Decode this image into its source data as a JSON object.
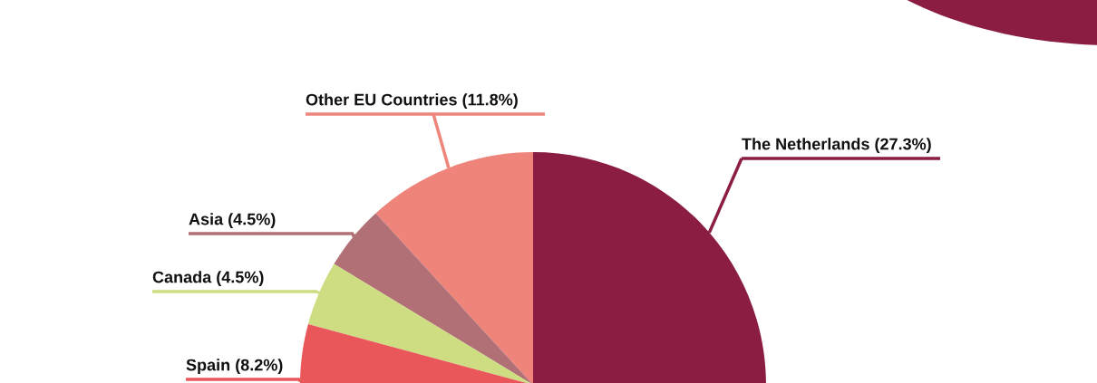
{
  "chart_data": {
    "type": "pie",
    "categories": [
      "The Netherlands",
      "Other EU Countries",
      "Asia",
      "Canada",
      "Spain"
    ],
    "values": [
      27.3,
      11.8,
      4.5,
      4.5,
      8.2
    ],
    "value_labels": [
      "(27.3%)",
      "(11.8%)",
      "(4.5%)",
      "(4.5%)",
      "(8.2%)"
    ],
    "colors": [
      "#8b1c42",
      "#ee847a",
      "#b07076",
      "#cedc82",
      "#ea575b"
    ]
  }
}
